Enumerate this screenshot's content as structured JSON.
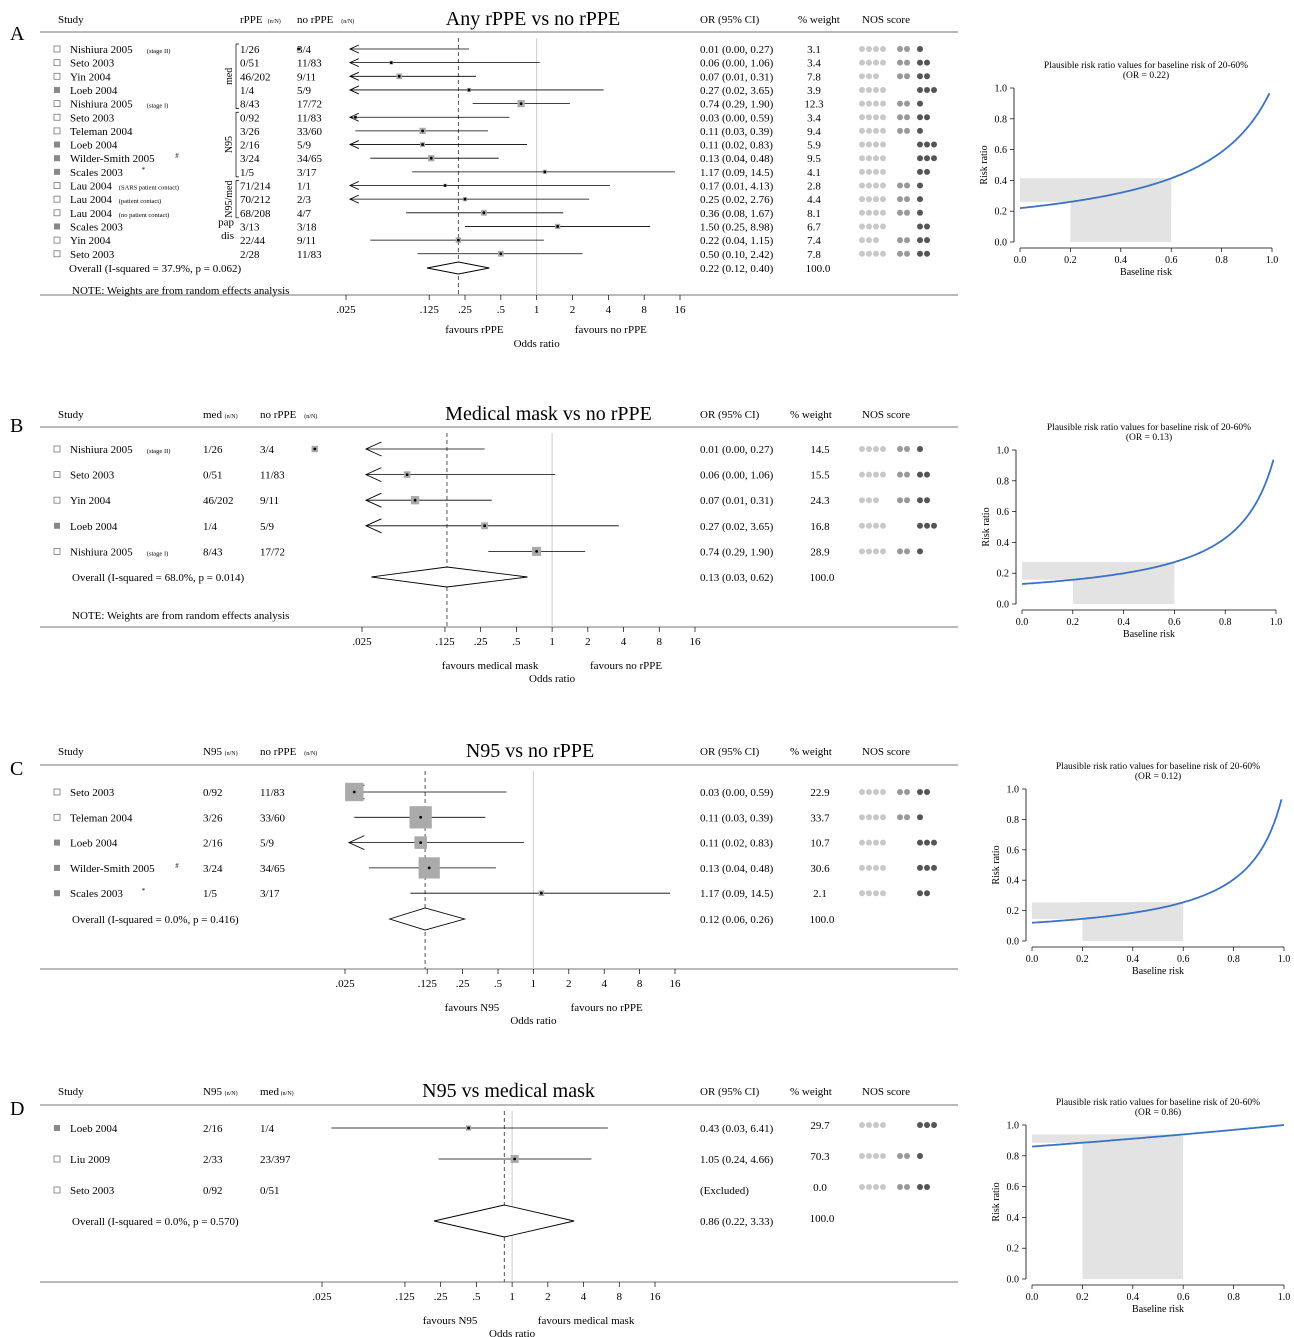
{
  "colors": {
    "grey_square": "#aaaaaa",
    "line": "#000000",
    "dashed": "#555555",
    "null_line": "#cccccc",
    "curve": "#3c72c2",
    "shade": "#e3e3e3",
    "nos1": "#c8c8c8",
    "nos2": "#999999",
    "nos3": "#555555"
  },
  "icons": {
    "marker_open": "open-square-icon",
    "marker_filled": "filled-square-icon",
    "nos_dot": "nos-dot-icon"
  },
  "chart_data": [
    {
      "type": "forest",
      "letter": "A",
      "title": "Any rPPE vs no rPPE",
      "col_study": "Study",
      "col_g1": "rPPE",
      "col_g1_unit": "(n/N)",
      "col_g2": "no rPPE",
      "col_g2_unit": "(n/N)",
      "col_or": "OR (95% CI)",
      "col_weight": "% weight",
      "col_nos": "NOS score",
      "xlabel": "Odds ratio",
      "favours_left": "favours rPPE",
      "favours_right": "favours no rPPE",
      "x_ticks": [
        ".025",
        ".125",
        ".25",
        ".5",
        "1",
        "2",
        "4",
        "8",
        "16"
      ],
      "x_tick_values": [
        0.025,
        0.125,
        0.25,
        0.5,
        1,
        2,
        4,
        8,
        16
      ],
      "xlim": [
        0.025,
        16
      ],
      "log_scale": true,
      "groups": [
        {
          "label": "med",
          "from": 0,
          "to": 4
        },
        {
          "label": "N95",
          "from": 5,
          "to": 9
        },
        {
          "label": "N95/med",
          "from": 10,
          "to": 12
        },
        {
          "label": "pap",
          "from": 13,
          "to": 13
        },
        {
          "label": "dis",
          "from": 14,
          "to": 14
        }
      ],
      "studies": [
        {
          "name": "Nishiura 2005",
          "sub": "(stage II)",
          "marker": "open",
          "g1": "1/26",
          "g2": "3/4",
          "or": 0.01,
          "lo": 0.0,
          "hi": 0.27,
          "ci_text": "0.01 (0.00, 0.27)",
          "weight": "3.1",
          "arrow_left": true,
          "nos": [
            4,
            2,
            1
          ]
        },
        {
          "name": "Seto 2003",
          "sub": "",
          "marker": "open",
          "g1": "0/51",
          "g2": "11/83",
          "or": 0.06,
          "lo": 0.0,
          "hi": 1.06,
          "ci_text": "0.06 (0.00, 1.06)",
          "weight": "3.4",
          "arrow_left": true,
          "nos": [
            4,
            2,
            2
          ]
        },
        {
          "name": "Yin 2004",
          "sub": "",
          "marker": "open",
          "g1": "46/202",
          "g2": "9/11",
          "or": 0.07,
          "lo": 0.01,
          "hi": 0.31,
          "ci_text": "0.07 (0.01, 0.31)",
          "weight": "7.8",
          "arrow_left": true,
          "nos": [
            3,
            2,
            2
          ]
        },
        {
          "name": "Loeb 2004",
          "sub": "",
          "marker": "filled",
          "g1": "1/4",
          "g2": "5/9",
          "or": 0.27,
          "lo": 0.02,
          "hi": 3.65,
          "ci_text": "0.27 (0.02, 3.65)",
          "weight": "3.9",
          "arrow_left": true,
          "nos": [
            4,
            0,
            3
          ]
        },
        {
          "name": "Nishiura 2005",
          "sub": "(stage I)",
          "marker": "open",
          "g1": "8/43",
          "g2": "17/72",
          "or": 0.74,
          "lo": 0.29,
          "hi": 1.9,
          "ci_text": "0.74 (0.29, 1.90)",
          "weight": "12.3",
          "arrow_left": false,
          "nos": [
            4,
            2,
            1
          ]
        },
        {
          "name": "Seto 2003",
          "sub": "",
          "marker": "open",
          "g1": "0/92",
          "g2": "11/83",
          "or": 0.03,
          "lo": 0.0,
          "hi": 0.59,
          "ci_text": "0.03 (0.00, 0.59)",
          "weight": "3.4",
          "arrow_left": true,
          "nos": [
            4,
            2,
            2
          ]
        },
        {
          "name": "Teleman 2004",
          "sub": "",
          "marker": "open",
          "g1": "3/26",
          "g2": "33/60",
          "or": 0.11,
          "lo": 0.03,
          "hi": 0.39,
          "ci_text": "0.11 (0.03, 0.39)",
          "weight": "9.4",
          "arrow_left": false,
          "nos": [
            4,
            2,
            1
          ]
        },
        {
          "name": "Loeb 2004",
          "sub": "",
          "marker": "filled",
          "g1": "2/16",
          "g2": "5/9",
          "or": 0.11,
          "lo": 0.02,
          "hi": 0.83,
          "ci_text": "0.11 (0.02, 0.83)",
          "weight": "5.9",
          "arrow_left": true,
          "nos": [
            4,
            0,
            3
          ]
        },
        {
          "name": "Wilder-Smith 2005",
          "sup": "#",
          "sub": "",
          "marker": "filled",
          "g1": "3/24",
          "g2": "34/65",
          "or": 0.13,
          "lo": 0.04,
          "hi": 0.48,
          "ci_text": "0.13 (0.04, 0.48)",
          "weight": "9.5",
          "arrow_left": false,
          "nos": [
            4,
            0,
            3
          ]
        },
        {
          "name": "Scales 2003",
          "sup": "*",
          "sub": "",
          "marker": "filled",
          "g1": "1/5",
          "g2": "3/17",
          "or": 1.17,
          "lo": 0.09,
          "hi": 14.5,
          "ci_text": "1.17 (0.09, 14.5)",
          "weight": "4.1",
          "arrow_left": false,
          "nos": [
            4,
            0,
            2
          ]
        },
        {
          "name": "Lau 2004",
          "sub": "(SARS patient contact)",
          "marker": "open",
          "g1": "71/214",
          "g2": "1/1",
          "or": 0.17,
          "lo": 0.01,
          "hi": 4.13,
          "ci_text": "0.17 (0.01, 4.13)",
          "weight": "2.8",
          "arrow_left": true,
          "nos": [
            4,
            2,
            1
          ]
        },
        {
          "name": "Lau 2004",
          "sub": "(patient contact)",
          "marker": "open",
          "g1": "70/212",
          "g2": "2/3",
          "or": 0.25,
          "lo": 0.02,
          "hi": 2.76,
          "ci_text": "0.25 (0.02, 2.76)",
          "weight": "4.4",
          "arrow_left": true,
          "nos": [
            4,
            2,
            1
          ]
        },
        {
          "name": "Lau 2004",
          "sub": "(no patient contact)",
          "marker": "open",
          "g1": "68/208",
          "g2": "4/7",
          "or": 0.36,
          "lo": 0.08,
          "hi": 1.67,
          "ci_text": "0.36 (0.08, 1.67)",
          "weight": "8.1",
          "arrow_left": false,
          "nos": [
            4,
            2,
            1
          ]
        },
        {
          "name": "Scales 2003",
          "sub": "",
          "marker": "filled",
          "g1": "3/13",
          "g2": "3/18",
          "or": 1.5,
          "lo": 0.25,
          "hi": 8.98,
          "ci_text": "1.50 (0.25, 8.98)",
          "weight": "6.7",
          "arrow_left": false,
          "nos": [
            4,
            0,
            2
          ]
        },
        {
          "name": "Yin 2004",
          "sub": "",
          "marker": "open",
          "g1": "22/44",
          "g2": "9/11",
          "or": 0.22,
          "lo": 0.04,
          "hi": 1.15,
          "ci_text": "0.22 (0.04, 1.15)",
          "weight": "7.4",
          "arrow_left": false,
          "nos": [
            3,
            2,
            2
          ]
        },
        {
          "name": "Seto 2003",
          "sub": "",
          "marker": "open",
          "g1": "2/28",
          "g2": "11/83",
          "or": 0.5,
          "lo": 0.1,
          "hi": 2.42,
          "ci_text": "0.50 (0.10, 2.42)",
          "weight": "7.8",
          "arrow_left": false,
          "nos": [
            4,
            2,
            2
          ]
        }
      ],
      "overall": {
        "label": "Overall  (I-squared = 37.9%, p = 0.062)",
        "or": 0.22,
        "lo": 0.12,
        "hi": 0.4,
        "ci_text": "0.22 (0.12, 0.40)",
        "weight": "100.0"
      },
      "note": "NOTE: Weights are from random effects analysis",
      "side": {
        "type": "line",
        "title": "Plausible risk ratio values for baseline risk of 20-60%",
        "subtitle": "(OR = 0.22)",
        "or": 0.22,
        "xlabel": "Baseline risk",
        "ylabel": "Risk ratio",
        "x_ticks": [
          "0.0",
          "0.2",
          "0.4",
          "0.6",
          "0.8",
          "1.0"
        ],
        "y_ticks": [
          "0.0",
          "0.2",
          "0.4",
          "0.6",
          "0.8",
          "1.0"
        ],
        "xlim": [
          0,
          1
        ],
        "ylim": [
          0,
          1
        ],
        "shaded_baseline": [
          0.2,
          0.6
        ]
      }
    },
    {
      "type": "forest",
      "letter": "B",
      "title": "Medical mask vs no rPPE",
      "col_study": "Study",
      "col_g1": "med",
      "col_g1_unit": "(n/N)",
      "col_g2": "no rPPE",
      "col_g2_unit": "(n/N)",
      "col_or": "OR (95% CI)",
      "col_weight": "% weight",
      "col_nos": "NOS score",
      "xlabel": "Odds ratio",
      "favours_left": "favours medical mask",
      "favours_right": "favours no rPPE",
      "x_ticks": [
        ".025",
        ".125",
        ".25",
        ".5",
        "1",
        "2",
        "4",
        "8",
        "16"
      ],
      "x_tick_values": [
        0.025,
        0.125,
        0.25,
        0.5,
        1,
        2,
        4,
        8,
        16
      ],
      "xlim": [
        0.025,
        16
      ],
      "log_scale": true,
      "groups": [],
      "studies": [
        {
          "name": "Nishiura 2005",
          "sub": "(stage II)",
          "marker": "open",
          "g1": "1/26",
          "g2": "3/4",
          "or": 0.01,
          "lo": 0.0,
          "hi": 0.27,
          "ci_text": "0.01 (0.00, 0.27)",
          "weight": "14.5",
          "arrow_left": true,
          "nos": [
            4,
            2,
            1
          ]
        },
        {
          "name": "Seto 2003",
          "sub": "",
          "marker": "open",
          "g1": "0/51",
          "g2": "11/83",
          "or": 0.06,
          "lo": 0.0,
          "hi": 1.06,
          "ci_text": "0.06 (0.00, 1.06)",
          "weight": "15.5",
          "arrow_left": true,
          "nos": [
            4,
            2,
            2
          ]
        },
        {
          "name": "Yin 2004",
          "sub": "",
          "marker": "open",
          "g1": "46/202",
          "g2": "9/11",
          "or": 0.07,
          "lo": 0.01,
          "hi": 0.31,
          "ci_text": "0.07 (0.01, 0.31)",
          "weight": "24.3",
          "arrow_left": true,
          "nos": [
            3,
            2,
            2
          ]
        },
        {
          "name": "Loeb 2004",
          "sub": "",
          "marker": "filled",
          "g1": "1/4",
          "g2": "5/9",
          "or": 0.27,
          "lo": 0.02,
          "hi": 3.65,
          "ci_text": "0.27 (0.02, 3.65)",
          "weight": "16.8",
          "arrow_left": true,
          "nos": [
            4,
            0,
            3
          ]
        },
        {
          "name": "Nishiura 2005",
          "sub": "(stage I)",
          "marker": "open",
          "g1": "8/43",
          "g2": "17/72",
          "or": 0.74,
          "lo": 0.29,
          "hi": 1.9,
          "ci_text": "0.74 (0.29, 1.90)",
          "weight": "28.9",
          "arrow_left": false,
          "nos": [
            4,
            2,
            1
          ]
        }
      ],
      "overall": {
        "label": "Overall  (I-squared = 68.0%, p = 0.014)",
        "or": 0.13,
        "lo": 0.03,
        "hi": 0.62,
        "ci_text": "0.13 (0.03, 0.62)",
        "weight": "100.0"
      },
      "note": "NOTE: Weights are from random effects analysis",
      "side": {
        "type": "line",
        "title": "Plausible risk ratio values for baseline risk of 20-60%",
        "subtitle": "(OR = 0.13)",
        "or": 0.13,
        "xlabel": "Baseline risk",
        "ylabel": "Risk ratio",
        "x_ticks": [
          "0.0",
          "0.2",
          "0.4",
          "0.6",
          "0.8",
          "1.0"
        ],
        "y_ticks": [
          "0.0",
          "0.2",
          "0.4",
          "0.6",
          "0.8",
          "1.0"
        ],
        "xlim": [
          0,
          1
        ],
        "ylim": [
          0,
          1
        ],
        "shaded_baseline": [
          0.2,
          0.6
        ]
      }
    },
    {
      "type": "forest",
      "letter": "C",
      "title": "N95 vs no rPPE",
      "col_study": "Study",
      "col_g1": "N95",
      "col_g1_unit": "(n/N)",
      "col_g2": "no rPPE",
      "col_g2_unit": "(n/N)",
      "col_or": "OR (95% CI)",
      "col_weight": "% weight",
      "col_nos": "NOS score",
      "xlabel": "Odds ratio",
      "favours_left": "favours N95",
      "favours_right": "favours no rPPE",
      "x_ticks": [
        ".025",
        ".125",
        ".25",
        ".5",
        "1",
        "2",
        "4",
        "8",
        "16"
      ],
      "x_tick_values": [
        0.025,
        0.125,
        0.25,
        0.5,
        1,
        2,
        4,
        8,
        16
      ],
      "xlim": [
        0.025,
        16
      ],
      "log_scale": true,
      "groups": [],
      "studies": [
        {
          "name": "Seto 2003",
          "sub": "",
          "marker": "open",
          "g1": "0/92",
          "g2": "11/83",
          "or": 0.03,
          "lo": 0.0,
          "hi": 0.59,
          "ci_text": "0.03 (0.00, 0.59)",
          "weight": "22.9",
          "arrow_left": true,
          "nos": [
            4,
            2,
            2
          ]
        },
        {
          "name": "Teleman 2004",
          "sub": "",
          "marker": "open",
          "g1": "3/26",
          "g2": "33/60",
          "or": 0.11,
          "lo": 0.03,
          "hi": 0.39,
          "ci_text": "0.11 (0.03, 0.39)",
          "weight": "33.7",
          "arrow_left": false,
          "nos": [
            4,
            2,
            1
          ]
        },
        {
          "name": "Loeb 2004",
          "sub": "",
          "marker": "filled",
          "g1": "2/16",
          "g2": "5/9",
          "or": 0.11,
          "lo": 0.02,
          "hi": 0.83,
          "ci_text": "0.11 (0.02, 0.83)",
          "weight": "10.7",
          "arrow_left": true,
          "nos": [
            4,
            0,
            3
          ]
        },
        {
          "name": "Wilder-Smith 2005",
          "sup": "#",
          "sub": "",
          "marker": "filled",
          "g1": "3/24",
          "g2": "34/65",
          "or": 0.13,
          "lo": 0.04,
          "hi": 0.48,
          "ci_text": "0.13 (0.04, 0.48)",
          "weight": "30.6",
          "arrow_left": false,
          "nos": [
            4,
            0,
            3
          ]
        },
        {
          "name": "Scales 2003",
          "sup": "*",
          "sub": "",
          "marker": "filled",
          "g1": "1/5",
          "g2": "3/17",
          "or": 1.17,
          "lo": 0.09,
          "hi": 14.5,
          "ci_text": "1.17 (0.09, 14.5)",
          "weight": "2.1",
          "arrow_left": false,
          "nos": [
            4,
            0,
            2
          ]
        }
      ],
      "overall": {
        "label": "Overall  (I-squared = 0.0%, p = 0.416)",
        "or": 0.12,
        "lo": 0.06,
        "hi": 0.26,
        "ci_text": "0.12 (0.06, 0.26)",
        "weight": "100.0"
      },
      "note": "",
      "side": {
        "type": "line",
        "title": "Plausible risk ratio values for baseline risk of 20-60%",
        "subtitle": "(OR = 0.12)",
        "or": 0.12,
        "xlabel": "Baseline risk",
        "ylabel": "Risk ratio",
        "x_ticks": [
          "0.0",
          "0.2",
          "0.4",
          "0.6",
          "0.8",
          "1.0"
        ],
        "y_ticks": [
          "0.0",
          "0.2",
          "0.4",
          "0.6",
          "0.8",
          "1.0"
        ],
        "xlim": [
          0,
          1
        ],
        "ylim": [
          0,
          1
        ],
        "shaded_baseline": [
          0.2,
          0.6
        ]
      }
    },
    {
      "type": "forest",
      "letter": "D",
      "title": "N95 vs medical mask",
      "col_study": "Study",
      "col_g1": "N95",
      "col_g1_unit": "(n/N)",
      "col_g2": "med",
      "col_g2_unit": "(n/N)",
      "col_or": "OR (95% CI)",
      "col_weight": "% weight",
      "col_nos": "NOS score",
      "xlabel": "Odds ratio",
      "favours_left": "favours N95",
      "favours_right": "favours medical mask",
      "x_ticks": [
        ".025",
        ".125",
        ".25",
        ".5",
        "1",
        "2",
        "4",
        "8",
        "16"
      ],
      "x_tick_values": [
        0.025,
        0.125,
        0.25,
        0.5,
        1,
        2,
        4,
        8,
        16
      ],
      "xlim": [
        0.025,
        16
      ],
      "log_scale": true,
      "groups": [],
      "studies": [
        {
          "name": "Loeb 2004",
          "sub": "",
          "marker": "filled",
          "g1": "2/16",
          "g2": "1/4",
          "or": 0.43,
          "lo": 0.03,
          "hi": 6.41,
          "ci_text": "0.43 (0.03, 6.41)",
          "weight": "29.7",
          "arrow_left": false,
          "nos": [
            4,
            0,
            3
          ]
        },
        {
          "name": "Liu 2009",
          "sub": "",
          "marker": "open",
          "g1": "2/33",
          "g2": "23/397",
          "or": 1.05,
          "lo": 0.24,
          "hi": 4.66,
          "ci_text": "1.05 (0.24, 4.66)",
          "weight": "70.3",
          "arrow_left": false,
          "nos": [
            4,
            2,
            1
          ]
        },
        {
          "name": "Seto 2003",
          "sub": "",
          "marker": "open",
          "g1": "0/92",
          "g2": "0/51",
          "or": null,
          "lo": null,
          "hi": null,
          "ci_text": "(Excluded)",
          "weight": "0.0",
          "arrow_left": false,
          "nos": [
            4,
            2,
            2
          ]
        }
      ],
      "overall": {
        "label": "Overall  (I-squared = 0.0%, p = 0.570)",
        "or": 0.86,
        "lo": 0.22,
        "hi": 3.33,
        "ci_text": "0.86 (0.22, 3.33)",
        "weight": "100.0"
      },
      "note": "",
      "side": {
        "type": "line",
        "title": "Plausible risk ratio values for baseline risk of 20-60%",
        "subtitle": "(OR = 0.86)",
        "or": 0.86,
        "xlabel": "Baseline risk",
        "ylabel": "Risk ratio",
        "x_ticks": [
          "0.0",
          "0.2",
          "0.4",
          "0.6",
          "0.8",
          "1.0"
        ],
        "y_ticks": [
          "0.0",
          "0.2",
          "0.4",
          "0.6",
          "0.8",
          "1.0"
        ],
        "xlim": [
          0,
          1
        ],
        "ylim": [
          0,
          1
        ],
        "shaded_baseline": [
          0.2,
          0.6
        ]
      }
    }
  ]
}
